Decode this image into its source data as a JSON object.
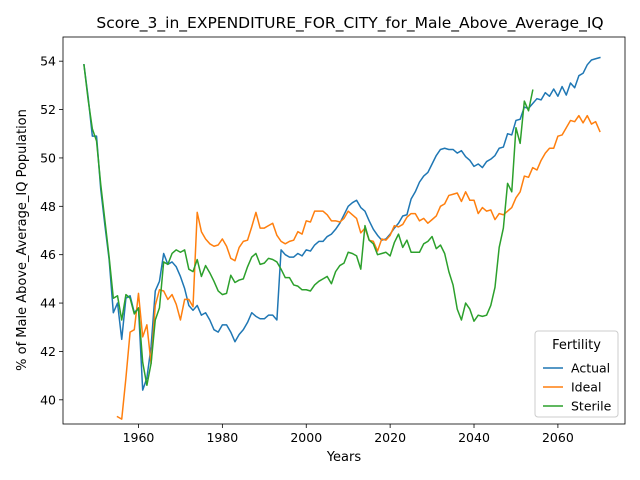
{
  "chart_data": {
    "type": "line",
    "title": "Score_3_in_EXPENDITURE_FOR_CITY_for_Male_Above_Average_IQ",
    "xlabel": "Years",
    "ylabel": "% of Male Above_Average_IQ Population",
    "xlim": [
      1942,
      2076
    ],
    "ylim": [
      39.0,
      55.0
    ],
    "xticks": [
      1960,
      1980,
      2000,
      2020,
      2040,
      2060
    ],
    "yticks": [
      40,
      42,
      44,
      46,
      48,
      50,
      52,
      54
    ],
    "grid": false,
    "legend": {
      "title": "Fertility",
      "position": "lower-right"
    },
    "series": [
      {
        "name": "Actual",
        "color": "#1f77b4",
        "x": [
          1947,
          1948,
          1949,
          1950,
          1951,
          1952,
          1953,
          1954,
          1955,
          1956,
          1957,
          1958,
          1959,
          1960,
          1961,
          1962,
          1963,
          1964,
          1965,
          1966,
          1967,
          1968,
          1969,
          1970,
          1971,
          1972,
          1973,
          1974,
          1975,
          1976,
          1977,
          1978,
          1979,
          1980,
          1981,
          1982,
          1983,
          1984,
          1985,
          1986,
          1987,
          1988,
          1989,
          1990,
          1991,
          1992,
          1993,
          1994,
          1995,
          1996,
          1997,
          1998,
          1999,
          2000,
          2001,
          2002,
          2003,
          2004,
          2005,
          2006,
          2007,
          2008,
          2009,
          2010,
          2011,
          2012,
          2013,
          2014,
          2015,
          2016,
          2017,
          2018,
          2019,
          2020,
          2021,
          2022,
          2023,
          2024,
          2025,
          2026,
          2027,
          2028,
          2029,
          2030,
          2031,
          2032,
          2033,
          2034,
          2035,
          2036,
          2037,
          2038,
          2039,
          2040,
          2041,
          2042,
          2043,
          2044,
          2045,
          2046,
          2047,
          2048,
          2049,
          2050,
          2051,
          2052,
          2053,
          2054,
          2055,
          2056,
          2057,
          2058,
          2059,
          2060,
          2061,
          2062,
          2063,
          2064,
          2065,
          2066,
          2067,
          2068,
          2069,
          2070
        ],
        "values": [
          53.85,
          52.5,
          50.9,
          50.9,
          48.7,
          47.2,
          45.8,
          43.6,
          44.0,
          42.5,
          44.2,
          44.3,
          43.6,
          43.8,
          40.4,
          40.9,
          42.2,
          44.5,
          44.9,
          46.05,
          45.6,
          45.7,
          45.5,
          45.1,
          44.6,
          43.9,
          43.7,
          43.9,
          43.5,
          43.6,
          43.3,
          42.9,
          42.8,
          43.1,
          43.1,
          42.8,
          42.4,
          42.7,
          42.9,
          43.2,
          43.6,
          43.45,
          43.35,
          43.35,
          43.5,
          43.5,
          43.3,
          46.2,
          46.0,
          45.9,
          45.9,
          46.05,
          45.95,
          46.2,
          46.15,
          46.4,
          46.55,
          46.55,
          46.75,
          46.85,
          47.05,
          47.3,
          47.65,
          48.0,
          48.15,
          48.25,
          47.95,
          47.8,
          47.4,
          47.05,
          46.8,
          46.6,
          46.65,
          46.85,
          47.1,
          47.3,
          47.6,
          47.65,
          48.3,
          48.6,
          49.0,
          49.25,
          49.4,
          49.75,
          50.1,
          50.35,
          50.4,
          50.35,
          50.35,
          50.2,
          50.3,
          50.05,
          49.9,
          49.65,
          49.75,
          49.6,
          49.85,
          49.95,
          50.1,
          50.4,
          50.45,
          51.0,
          50.95,
          51.55,
          51.6,
          52.1,
          52.05,
          52.25,
          52.45,
          52.4,
          52.7,
          52.55,
          52.85,
          52.55,
          52.95,
          52.6,
          53.1,
          52.9,
          53.4,
          53.5,
          53.85,
          54.05,
          54.1,
          54.15
        ]
      },
      {
        "name": "Ideal",
        "color": "#ff7f0e",
        "x": [
          1955,
          1956,
          1957,
          1958,
          1959,
          1960,
          1961,
          1962,
          1963,
          1964,
          1965,
          1966,
          1967,
          1968,
          1969,
          1970,
          1971,
          1972,
          1973,
          1974,
          1975,
          1976,
          1977,
          1978,
          1979,
          1980,
          1981,
          1982,
          1983,
          1984,
          1985,
          1986,
          1987,
          1988,
          1989,
          1990,
          1991,
          1992,
          1993,
          1994,
          1995,
          1996,
          1997,
          1998,
          1999,
          2000,
          2001,
          2002,
          2003,
          2004,
          2005,
          2006,
          2007,
          2008,
          2009,
          2010,
          2011,
          2012,
          2013,
          2014,
          2015,
          2016,
          2017,
          2018,
          2019,
          2020,
          2021,
          2022,
          2023,
          2024,
          2025,
          2026,
          2027,
          2028,
          2029,
          2030,
          2031,
          2032,
          2033,
          2034,
          2035,
          2036,
          2037,
          2038,
          2039,
          2040,
          2041,
          2042,
          2043,
          2044,
          2045,
          2046,
          2047,
          2048,
          2049,
          2050,
          2051,
          2052,
          2053,
          2054,
          2055,
          2056,
          2057,
          2058,
          2059,
          2060,
          2061,
          2062,
          2063,
          2064,
          2065,
          2066,
          2067,
          2068,
          2069,
          2070
        ],
        "values": [
          39.3,
          39.2,
          40.9,
          42.8,
          42.9,
          44.4,
          42.6,
          43.1,
          41.5,
          43.9,
          44.55,
          44.5,
          44.15,
          44.35,
          43.95,
          43.3,
          44.15,
          44.15,
          43.85,
          47.75,
          46.95,
          46.65,
          46.45,
          46.35,
          46.4,
          46.65,
          46.35,
          45.85,
          45.75,
          46.3,
          46.55,
          46.6,
          47.15,
          47.75,
          47.1,
          47.1,
          47.2,
          47.3,
          46.8,
          46.55,
          46.45,
          46.55,
          46.6,
          46.95,
          46.85,
          47.4,
          47.35,
          47.8,
          47.8,
          47.8,
          47.65,
          47.4,
          47.4,
          47.35,
          47.5,
          47.8,
          47.65,
          47.5,
          46.9,
          47.1,
          46.6,
          46.55,
          46.15,
          46.65,
          46.6,
          46.8,
          47.2,
          47.15,
          47.25,
          47.55,
          47.7,
          47.7,
          47.4,
          47.5,
          47.3,
          47.45,
          47.6,
          48.0,
          48.1,
          48.45,
          48.5,
          48.55,
          48.2,
          48.6,
          48.25,
          48.25,
          47.7,
          47.95,
          47.8,
          47.85,
          47.45,
          47.7,
          47.65,
          47.8,
          47.95,
          48.35,
          48.6,
          49.25,
          49.2,
          49.6,
          49.5,
          49.9,
          50.2,
          50.4,
          50.4,
          50.9,
          50.95,
          51.25,
          51.55,
          51.5,
          51.75,
          51.45,
          51.75,
          51.4,
          51.5,
          51.1
        ]
      },
      {
        "name": "Sterile",
        "color": "#2ca02c",
        "x": [
          1947,
          1948,
          1949,
          1950,
          1951,
          1952,
          1953,
          1954,
          1955,
          1956,
          1957,
          1958,
          1959,
          1960,
          1961,
          1962,
          1963,
          1964,
          1965,
          1966,
          1967,
          1968,
          1969,
          1970,
          1971,
          1972,
          1973,
          1974,
          1975,
          1976,
          1977,
          1978,
          1979,
          1980,
          1981,
          1982,
          1983,
          1984,
          1985,
          1986,
          1987,
          1988,
          1989,
          1990,
          1991,
          1992,
          1993,
          1994,
          1995,
          1996,
          1997,
          1998,
          1999,
          2000,
          2001,
          2002,
          2003,
          2004,
          2005,
          2006,
          2007,
          2008,
          2009,
          2010,
          2011,
          2012,
          2013,
          2014,
          2015,
          2016,
          2017,
          2018,
          2019,
          2020,
          2021,
          2022,
          2023,
          2024,
          2025,
          2026,
          2027,
          2028,
          2029,
          2030,
          2031,
          2032,
          2033,
          2034,
          2035,
          2036,
          2037,
          2038,
          2039,
          2040,
          2041,
          2042,
          2043,
          2044,
          2045,
          2046,
          2047,
          2048,
          2049,
          2050,
          2051,
          2052,
          2053,
          2054
        ],
        "values": [
          53.85,
          52.4,
          51.2,
          50.7,
          48.9,
          47.4,
          45.9,
          44.2,
          44.3,
          43.3,
          44.35,
          44.2,
          43.55,
          43.8,
          41.55,
          40.6,
          41.5,
          43.3,
          43.8,
          45.7,
          45.6,
          46.05,
          46.2,
          46.1,
          46.2,
          45.4,
          45.3,
          45.8,
          45.1,
          45.55,
          45.25,
          44.9,
          44.5,
          44.35,
          44.4,
          45.15,
          44.85,
          44.95,
          45.0,
          45.5,
          45.9,
          46.05,
          45.6,
          45.65,
          45.85,
          45.8,
          45.7,
          45.4,
          45.05,
          45.05,
          44.75,
          44.7,
          44.55,
          44.55,
          44.5,
          44.75,
          44.9,
          45.0,
          45.1,
          44.8,
          45.3,
          45.55,
          45.65,
          46.1,
          46.05,
          45.95,
          45.4,
          47.2,
          46.6,
          46.45,
          46.0,
          46.05,
          46.1,
          45.95,
          46.5,
          46.85,
          46.3,
          46.6,
          46.1,
          46.1,
          46.1,
          46.45,
          46.55,
          46.75,
          46.25,
          46.4,
          46.05,
          45.3,
          44.75,
          43.75,
          43.3,
          44.0,
          43.75,
          43.25,
          43.5,
          43.45,
          43.5,
          43.9,
          44.65,
          46.3,
          47.1,
          48.95,
          48.6,
          51.25,
          50.6,
          52.35,
          51.95,
          52.8
        ]
      }
    ]
  }
}
